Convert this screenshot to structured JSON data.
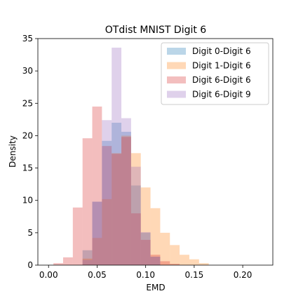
{
  "chart_data": {
    "type": "histogram",
    "title": "OTdist MNIST Digit 6",
    "xlabel": "EMD",
    "ylabel": "Density",
    "xlim": [
      -0.011,
      0.231
    ],
    "ylim": [
      0,
      35
    ],
    "xticks": [
      0.0,
      0.05,
      0.1,
      0.15,
      0.2
    ],
    "xtick_labels": [
      "0.00",
      "0.05",
      "0.10",
      "0.15",
      "0.20"
    ],
    "yticks": [
      0,
      5,
      10,
      15,
      20,
      25,
      30,
      35
    ],
    "ytick_labels": [
      "0",
      "5",
      "10",
      "15",
      "20",
      "25",
      "30",
      "35"
    ],
    "legend_position": "top-right",
    "series": [
      {
        "name": "Digit 0-Digit 6",
        "color": "#1f77b4",
        "bin_start": 0.035,
        "bin_width": 0.01,
        "values": [
          2.3,
          9.8,
          19.2,
          22.0,
          20.6,
          12.3,
          5.0,
          1.3
        ]
      },
      {
        "name": "Digit 1-Digit 6",
        "color": "#ff7f0e",
        "bin_start": 0.035,
        "bin_width": 0.01,
        "values": [
          1.0,
          4.2,
          10.2,
          17.3,
          20.0,
          17.3,
          12.0,
          8.8,
          5.0,
          3.1,
          1.6,
          0.9,
          0.3
        ]
      },
      {
        "name": "Digit 6-Digit 6",
        "color": "#d62728",
        "bin_start": 0.005,
        "bin_width": 0.01,
        "values": [
          0.3,
          1.2,
          8.9,
          19.6,
          24.5,
          18.4,
          17.2,
          19.8,
          8.0,
          3.9,
          1.6,
          0.6,
          0.2
        ]
      },
      {
        "name": "Digit 6-Digit 9",
        "color": "#9467bd",
        "bin_start": 0.035,
        "bin_width": 0.01,
        "values": [
          0.8,
          9.8,
          22.4,
          33.6,
          22.7,
          15.2,
          5.1,
          1.3
        ]
      }
    ]
  }
}
